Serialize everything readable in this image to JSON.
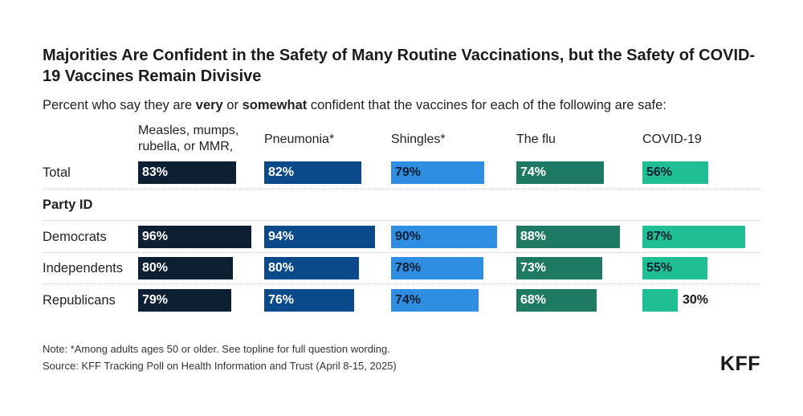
{
  "header": {
    "title": "Majorities Are Confident in the Safety of Many Routine Vaccinations, but the Safety of COVID-19 Vaccines Remain Divisive",
    "subtitle_parts": [
      "Percent who say they are ",
      "very",
      " or ",
      "somewhat",
      " confident that the vaccines for each of the following are safe:"
    ]
  },
  "chart_data": {
    "type": "bar",
    "categories": [
      "Measles, mumps, rubella, or MMR,",
      "Pneumonia*",
      "Shingles*",
      "The flu",
      "COVID-19"
    ],
    "category_colors": [
      "#0c1f33",
      "#0a4a8a",
      "#2f8ee2",
      "#1f7a64",
      "#1fbf93"
    ],
    "rows": [
      {
        "label": "Total",
        "values": [
          83,
          82,
          79,
          74,
          56
        ]
      },
      {
        "label": "Party ID",
        "group_header": true
      },
      {
        "label": "Democrats",
        "values": [
          96,
          94,
          90,
          88,
          87
        ]
      },
      {
        "label": "Independents",
        "values": [
          80,
          80,
          78,
          73,
          55
        ]
      },
      {
        "label": "Republicans",
        "values": [
          79,
          76,
          74,
          68,
          30
        ]
      }
    ],
    "value_suffix": "%"
  },
  "footer": {
    "note": "Note: *Among adults ages 50 or older. See topline for full question wording.",
    "source": "Source: KFF Tracking Poll on Health Information and Trust (April 8-15, 2025)",
    "logo": "KFF"
  }
}
